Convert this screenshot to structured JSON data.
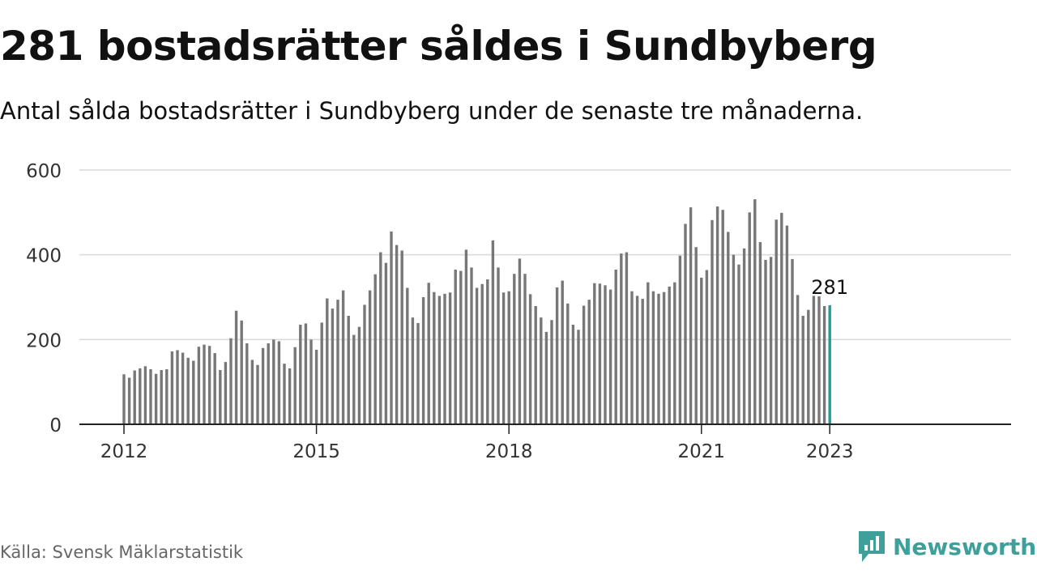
{
  "header": {
    "title": "281 bostadsrätter såldes i Sundbyberg",
    "subtitle": "Antal sålda bostadsrätter i Sundbyberg under de senaste tre månaderna."
  },
  "footer": {
    "source": "Källa: Svensk Mäklarstatistik",
    "brand": "Newsworthy",
    "brand_icon": "newsworthy-logo-icon"
  },
  "colors": {
    "bar": "#777777",
    "highlight": "#1b9e9b",
    "grid": "#d9d9d9",
    "axis": "#222222",
    "brand": "#3f9f9a"
  },
  "chart_data": {
    "type": "bar",
    "title": "Antal sålda bostadsrätter i Sundbyberg under de senaste tre månaderna.",
    "xlabel": "",
    "ylabel": "",
    "x_start": "2012-01",
    "x_ticks": [
      {
        "label": "2012",
        "date": "2012-01"
      },
      {
        "label": "2015",
        "date": "2015-01"
      },
      {
        "label": "2018",
        "date": "2018-01"
      },
      {
        "label": "2021",
        "date": "2021-01"
      },
      {
        "label": "2023",
        "date": "2023-01"
      }
    ],
    "y_ticks": [
      0,
      200,
      400,
      600
    ],
    "ylim": [
      0,
      600
    ],
    "grid": true,
    "highlight_label": "281",
    "values": [
      118,
      110,
      127,
      132,
      137,
      130,
      119,
      128,
      130,
      172,
      175,
      169,
      157,
      150,
      183,
      188,
      185,
      168,
      128,
      147,
      203,
      268,
      245,
      191,
      152,
      140,
      180,
      191,
      200,
      196,
      143,
      132,
      182,
      235,
      238,
      200,
      176,
      240,
      297,
      273,
      294,
      316,
      256,
      211,
      230,
      282,
      316,
      354,
      406,
      381,
      455,
      423,
      410,
      322,
      252,
      239,
      300,
      334,
      312,
      303,
      308,
      311,
      365,
      362,
      412,
      370,
      322,
      331,
      342,
      434,
      370,
      311,
      314,
      355,
      391,
      355,
      307,
      279,
      252,
      218,
      246,
      323,
      339,
      285,
      235,
      223,
      280,
      294,
      333,
      332,
      328,
      318,
      365,
      403,
      406,
      314,
      303,
      296,
      335,
      314,
      308,
      312,
      325,
      335,
      398,
      473,
      512,
      418,
      346,
      364,
      482,
      514,
      506,
      454,
      400,
      377,
      415,
      500,
      531,
      430,
      388,
      395,
      483,
      499,
      469,
      390,
      305,
      256,
      270,
      303,
      302,
      279,
      281
    ]
  }
}
